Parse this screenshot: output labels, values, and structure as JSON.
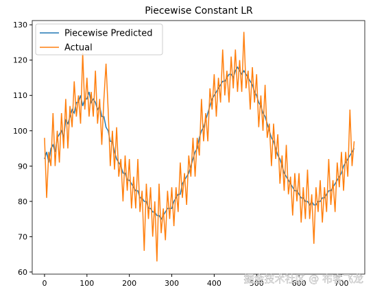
{
  "chart_data": {
    "type": "line",
    "title": "Piecewise Constant LR",
    "x": [
      0,
      5,
      10,
      15,
      20,
      25,
      30,
      35,
      40,
      45,
      50,
      55,
      60,
      65,
      70,
      75,
      80,
      85,
      90,
      95,
      100,
      105,
      110,
      115,
      120,
      125,
      130,
      135,
      140,
      145,
      150,
      155,
      160,
      165,
      170,
      175,
      180,
      185,
      190,
      195,
      200,
      205,
      210,
      215,
      220,
      225,
      230,
      235,
      240,
      245,
      250,
      255,
      260,
      265,
      270,
      275,
      280,
      285,
      290,
      295,
      300,
      305,
      310,
      315,
      320,
      325,
      330,
      335,
      340,
      345,
      350,
      355,
      360,
      365,
      370,
      375,
      380,
      385,
      390,
      395,
      400,
      405,
      410,
      415,
      420,
      425,
      430,
      435,
      440,
      445,
      450,
      455,
      460,
      465,
      470,
      475,
      480,
      485,
      490,
      495,
      500,
      505,
      510,
      515,
      520,
      525,
      530,
      535,
      540,
      545,
      550,
      555,
      560,
      565,
      570,
      575,
      580,
      585,
      590,
      595,
      600,
      605,
      610,
      615,
      620,
      625,
      630,
      635,
      640,
      645,
      650,
      655,
      660,
      665,
      670,
      675,
      680,
      685,
      690,
      695,
      700,
      705,
      710,
      715,
      720,
      725,
      730
    ],
    "series": [
      {
        "name": "Piecewise Predicted",
        "color": "#1f77b4",
        "values": [
          92,
          94,
          91,
          95,
          96,
          94,
          98,
          99,
          100,
          98,
          103,
          102,
          104,
          106,
          105,
          108,
          108,
          110,
          107,
          109,
          109,
          111,
          108,
          109,
          108,
          106,
          107,
          104,
          104,
          101,
          100,
          97,
          97,
          94,
          92,
          91,
          90,
          88,
          88,
          86,
          86,
          85,
          84,
          83,
          83,
          81,
          81,
          80,
          80,
          78,
          78,
          77,
          77,
          76,
          76,
          75,
          76,
          77,
          78,
          78,
          78,
          80,
          81,
          82,
          82,
          85,
          86,
          87,
          88,
          90,
          92,
          94,
          95,
          98,
          100,
          101,
          103,
          105,
          107,
          109,
          110,
          111,
          112,
          113,
          114,
          114,
          115,
          116,
          116,
          115,
          117,
          118,
          117,
          116,
          117,
          116,
          115,
          114,
          113,
          111,
          110,
          108,
          107,
          105,
          104,
          102,
          100,
          98,
          97,
          95,
          93,
          92,
          90,
          88,
          87,
          86,
          85,
          84,
          83,
          83,
          82,
          81,
          81,
          80,
          80,
          79,
          80,
          79,
          79,
          80,
          80,
          81,
          81,
          82,
          83,
          83,
          84,
          85,
          86,
          87,
          88,
          90,
          91,
          92,
          93,
          94,
          95
        ]
      },
      {
        "name": "Actual",
        "color": "#ff7f0e",
        "values": [
          98,
          81,
          94,
          90,
          105,
          90,
          100,
          91,
          105,
          95,
          109,
          95,
          107,
          101,
          114,
          104,
          110,
          102,
          122,
          106,
          115,
          104,
          111,
          104,
          117,
          102,
          109,
          96,
          109,
          119,
          106,
          90,
          100,
          89,
          101,
          87,
          92,
          80,
          93,
          83,
          92,
          78,
          87,
          78,
          92,
          77,
          83,
          66,
          85,
          75,
          84,
          70,
          80,
          63,
          85,
          71,
          78,
          69,
          83,
          75,
          84,
          73,
          84,
          77,
          91,
          81,
          88,
          79,
          93,
          87,
          98,
          87,
          98,
          93,
          109,
          97,
          105,
          97,
          112,
          106,
          116,
          104,
          115,
          108,
          123,
          110,
          117,
          108,
          121,
          112,
          123,
          111,
          120,
          111,
          128,
          112,
          117,
          106,
          118,
          108,
          116,
          101,
          110,
          100,
          113,
          98,
          102,
          90,
          102,
          92,
          99,
          85,
          93,
          83,
          96,
          82,
          87,
          76,
          88,
          80,
          88,
          74,
          84,
          75,
          89,
          75,
          82,
          68,
          84,
          77,
          86,
          74,
          84,
          77,
          92,
          79,
          86,
          77,
          91,
          84,
          94,
          83,
          94,
          87,
          106,
          90,
          97
        ]
      }
    ],
    "xlim": [
      -29,
      755
    ],
    "ylim": [
      59.4,
      131.2
    ],
    "xticks": [
      0,
      100,
      200,
      300,
      400,
      500,
      600,
      700
    ],
    "yticks": [
      60,
      70,
      80,
      90,
      100,
      110,
      120,
      130
    ],
    "legend": "upper left",
    "watermark": "掘金技术社区 @ 布客飞龙"
  }
}
